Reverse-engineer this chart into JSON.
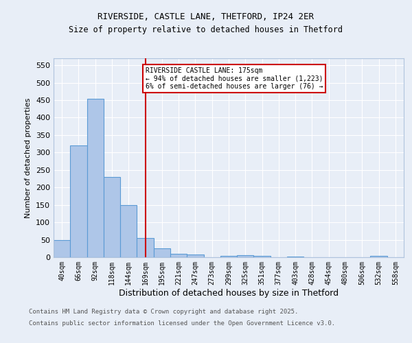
{
  "title1": "RIVERSIDE, CASTLE LANE, THETFORD, IP24 2ER",
  "title2": "Size of property relative to detached houses in Thetford",
  "xlabel": "Distribution of detached houses by size in Thetford",
  "ylabel": "Number of detached properties",
  "bins": [
    "40sqm",
    "66sqm",
    "92sqm",
    "118sqm",
    "144sqm",
    "169sqm",
    "195sqm",
    "221sqm",
    "247sqm",
    "273sqm",
    "299sqm",
    "325sqm",
    "351sqm",
    "377sqm",
    "403sqm",
    "428sqm",
    "454sqm",
    "480sqm",
    "506sqm",
    "532sqm",
    "558sqm"
  ],
  "values": [
    50,
    320,
    455,
    230,
    150,
    55,
    25,
    10,
    8,
    0,
    3,
    5,
    4,
    0,
    2,
    0,
    0,
    0,
    0,
    4,
    0
  ],
  "bar_color": "#aec6e8",
  "bar_edge_color": "#5b9bd5",
  "vline_x": 5.0,
  "vline_color": "#cc0000",
  "annotation_title": "RIVERSIDE CASTLE LANE: 175sqm",
  "annotation_line1": "← 94% of detached houses are smaller (1,223)",
  "annotation_line2": "6% of semi-detached houses are larger (76) →",
  "annotation_box_color": "#cc0000",
  "ylim": [
    0,
    570
  ],
  "yticks": [
    0,
    50,
    100,
    150,
    200,
    250,
    300,
    350,
    400,
    450,
    500,
    550
  ],
  "footnote1": "Contains HM Land Registry data © Crown copyright and database right 2025.",
  "footnote2": "Contains public sector information licensed under the Open Government Licence v3.0.",
  "background_color": "#e8eef7",
  "plot_bg_color": "#e8eef7"
}
